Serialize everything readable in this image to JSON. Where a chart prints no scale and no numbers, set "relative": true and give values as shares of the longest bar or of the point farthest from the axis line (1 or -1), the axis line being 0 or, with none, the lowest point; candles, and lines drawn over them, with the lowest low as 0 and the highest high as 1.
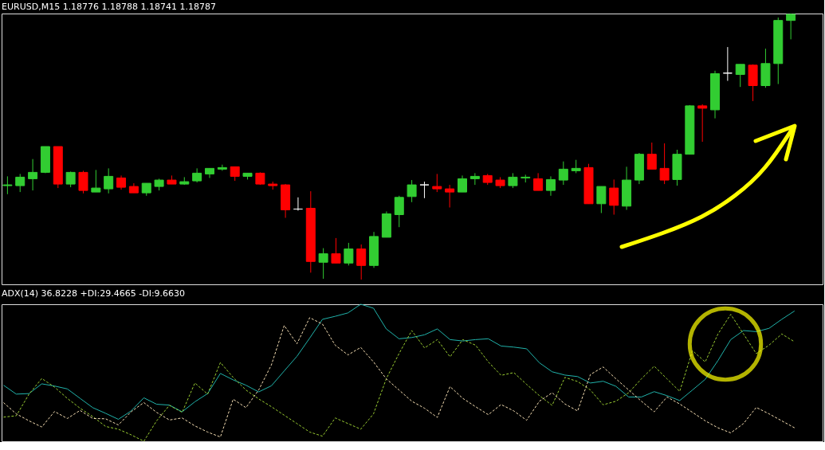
{
  "chart_data": [
    {
      "type": "candlestick",
      "title": "EURUSD,M15  1.18776 1.18788 1.18741 1.18787",
      "relative": true,
      "categories": [
        null,
        null,
        null,
        null,
        null,
        null,
        null,
        null,
        null,
        null,
        null,
        null,
        null,
        null,
        null,
        null,
        null,
        null,
        null,
        null,
        null,
        null,
        null,
        null,
        null,
        null,
        null,
        null,
        null,
        null,
        null,
        null,
        null,
        null,
        null,
        null,
        null,
        null,
        null,
        null,
        null,
        null,
        null,
        null,
        null,
        null,
        null,
        null,
        null,
        null,
        null,
        null,
        null,
        null,
        null,
        null,
        null,
        null,
        null,
        null,
        null,
        null,
        null
      ],
      "ohlc": [
        [
          0.353,
          0.388,
          0.321,
          0.356
        ],
        [
          0.353,
          0.397,
          0.329,
          0.385
        ],
        [
          0.379,
          0.453,
          0.335,
          0.403
        ],
        [
          0.403,
          0.5,
          0.4,
          0.5
        ],
        [
          0.5,
          0.5,
          0.344,
          0.359
        ],
        [
          0.359,
          0.406,
          0.347,
          0.403
        ],
        [
          0.403,
          0.409,
          0.324,
          0.335
        ],
        [
          0.329,
          0.412,
          0.329,
          0.344
        ],
        [
          0.341,
          0.418,
          0.324,
          0.388
        ],
        [
          0.382,
          0.391,
          0.338,
          0.347
        ],
        [
          0.35,
          0.362,
          0.326,
          0.326
        ],
        [
          0.326,
          0.362,
          0.315,
          0.362
        ],
        [
          0.35,
          0.379,
          0.335,
          0.374
        ],
        [
          0.374,
          0.391,
          0.359,
          0.359
        ],
        [
          0.359,
          0.385,
          0.356,
          0.368
        ],
        [
          0.371,
          0.418,
          0.365,
          0.4
        ],
        [
          0.397,
          0.418,
          0.382,
          0.418
        ],
        [
          0.415,
          0.432,
          0.409,
          0.421
        ],
        [
          0.424,
          0.424,
          0.371,
          0.388
        ],
        [
          0.388,
          0.4,
          0.376,
          0.4
        ],
        [
          0.4,
          0.403,
          0.356,
          0.359
        ],
        [
          0.359,
          0.368,
          0.338,
          0.353
        ],
        [
          0.356,
          0.359,
          0.232,
          0.262
        ],
        [
          0.265,
          0.309,
          0.259,
          0.265
        ],
        [
          0.268,
          0.332,
          0.026,
          0.068
        ],
        [
          0.065,
          0.118,
          0.003,
          0.097
        ],
        [
          0.097,
          0.156,
          0.062,
          0.062
        ],
        [
          0.062,
          0.138,
          0.053,
          0.115
        ],
        [
          0.115,
          0.132,
          0,
          0.053
        ],
        [
          0.053,
          0.179,
          0.044,
          0.162
        ],
        [
          0.159,
          0.256,
          0.159,
          0.247
        ],
        [
          0.244,
          0.315,
          0.197,
          0.309
        ],
        [
          0.312,
          0.374,
          0.291,
          0.356
        ],
        [
          0.356,
          0.368,
          0.306,
          0.356
        ],
        [
          0.35,
          0.397,
          0.329,
          0.341
        ],
        [
          0.341,
          0.356,
          0.271,
          0.329
        ],
        [
          0.329,
          0.391,
          0.329,
          0.379
        ],
        [
          0.379,
          0.4,
          0.356,
          0.388
        ],
        [
          0.391,
          0.397,
          0.356,
          0.365
        ],
        [
          0.374,
          0.385,
          0.344,
          0.353
        ],
        [
          0.353,
          0.4,
          0.344,
          0.385
        ],
        [
          0.382,
          0.394,
          0.365,
          0.385
        ],
        [
          0.379,
          0.4,
          0.335,
          0.335
        ],
        [
          0.335,
          0.388,
          0.315,
          0.376
        ],
        [
          0.374,
          0.444,
          0.356,
          0.415
        ],
        [
          0.409,
          0.45,
          0.4,
          0.418
        ],
        [
          0.421,
          0.435,
          0.285,
          0.285
        ],
        [
          0.285,
          0.35,
          0.25,
          0.35
        ],
        [
          0.344,
          0.376,
          0.244,
          0.279
        ],
        [
          0.276,
          0.424,
          0.262,
          0.374
        ],
        [
          0.374,
          0.476,
          0.359,
          0.471
        ],
        [
          0.471,
          0.515,
          0.415,
          0.415
        ],
        [
          0.418,
          0.512,
          0.359,
          0.374
        ],
        [
          0.376,
          0.488,
          0.353,
          0.471
        ],
        [
          0.471,
          0.656,
          0.471,
          0.653
        ],
        [
          0.653,
          0.659,
          0.518,
          0.644
        ],
        [
          0.638,
          0.785,
          0.606,
          0.774
        ],
        [
          0.776,
          0.874,
          0.747,
          0.776
        ],
        [
          0.771,
          0.809,
          0.724,
          0.809
        ],
        [
          0.806,
          0.809,
          0.671,
          0.729
        ],
        [
          0.729,
          0.868,
          0.721,
          0.812
        ],
        [
          0.812,
          0.985,
          0.735,
          0.974
        ],
        [
          0.974,
          1.0,
          0.903,
          0.997
        ]
      ],
      "colors": [
        "#32cd32",
        "#32cd32",
        "#32cd32",
        "#32cd32",
        "#ff0000",
        "#32cd32",
        "#ff0000",
        "#32cd32",
        "#32cd32",
        "#ff0000",
        "#ff0000",
        "#32cd32",
        "#32cd32",
        "#ff0000",
        "#32cd32",
        "#32cd32",
        "#32cd32",
        "#32cd32",
        "#ff0000",
        "#32cd32",
        "#ff0000",
        "#ff0000",
        "#ff0000",
        "#ffffff",
        "#ff0000",
        "#32cd32",
        "#ff0000",
        "#32cd32",
        "#ff0000",
        "#32cd32",
        "#32cd32",
        "#32cd32",
        "#32cd32",
        "#ffffff",
        "#ff0000",
        "#ff0000",
        "#32cd32",
        "#32cd32",
        "#ff0000",
        "#ff0000",
        "#32cd32",
        "#32cd32",
        "#ff0000",
        "#32cd32",
        "#32cd32",
        "#32cd32",
        "#ff0000",
        "#32cd32",
        "#ff0000",
        "#32cd32",
        "#32cd32",
        "#ff0000",
        "#ff0000",
        "#32cd32",
        "#32cd32",
        "#ff0000",
        "#32cd32",
        "#ffffff",
        "#32cd32",
        "#ff0000",
        "#32cd32",
        "#32cd32",
        "#32cd32"
      ]
    },
    {
      "type": "line",
      "title": "ADX(14) 36.8228 +DI:29.4665 -DI:9.6630",
      "relative": true,
      "categories": [
        null,
        null,
        null,
        null,
        null,
        null,
        null,
        null,
        null,
        null,
        null,
        null,
        null,
        null,
        null,
        null,
        null,
        null,
        null,
        null,
        null,
        null,
        null,
        null,
        null,
        null,
        null,
        null,
        null,
        null,
        null,
        null,
        null,
        null,
        null,
        null,
        null,
        null,
        null,
        null,
        null,
        null,
        null,
        null,
        null,
        null,
        null,
        null,
        null,
        null,
        null,
        null,
        null,
        null,
        null,
        null,
        null,
        null,
        null,
        null,
        null,
        null,
        null
      ],
      "series": [
        {
          "color": "#20b2aa",
          "line_style": "solid",
          "values": [
            0.409,
            0.344,
            0.348,
            0.419,
            0.403,
            0.382,
            0.313,
            0.245,
            0.204,
            0.16,
            0.221,
            0.317,
            0.27,
            0.264,
            0.215,
            0.288,
            0.348,
            0.495,
            0.448,
            0.409,
            0.36,
            0.405,
            0.513,
            0.62,
            0.753,
            0.89,
            0.912,
            0.937,
            1,
            0.971,
            0.82,
            0.748,
            0.757,
            0.777,
            0.82,
            0.742,
            0.732,
            0.742,
            0.748,
            0.695,
            0.687,
            0.675,
            0.573,
            0.507,
            0.483,
            0.472,
            0.425,
            0.438,
            0.401,
            0.323,
            0.323,
            0.362,
            0.333,
            0.297,
            0.374,
            0.452,
            0.589,
            0.742,
            0.808,
            0.8,
            0.824,
            0.89,
            0.951
          ]
        },
        {
          "color": "#9acd32",
          "line_style": "dashed",
          "values": [
            0.176,
            0.186,
            0.344,
            0.458,
            0.395,
            0.313,
            0.241,
            0.18,
            0.108,
            0.088,
            0.047,
            0,
            0.149,
            0.262,
            0.211,
            0.425,
            0.344,
            0.575,
            0.466,
            0.374,
            0.309,
            0.252,
            0.19,
            0.129,
            0.067,
            0.037,
            0.17,
            0.129,
            0.088,
            0.2,
            0.456,
            0.64,
            0.808,
            0.681,
            0.742,
            0.616,
            0.742,
            0.701,
            0.579,
            0.481,
            0.501,
            0.415,
            0.333,
            0.262,
            0.466,
            0.436,
            0.374,
            0.266,
            0.292,
            0.354,
            0.456,
            0.548,
            0.456,
            0.364,
            0.661,
            0.579,
            0.783,
            0.926,
            0.783,
            0.64,
            0.701,
            0.783,
            0.726
          ]
        },
        {
          "color": "#f5deb3",
          "line_style": "dashed",
          "values": [
            0.282,
            0.2,
            0.149,
            0.104,
            0.217,
            0.166,
            0.225,
            0.166,
            0.164,
            0.119,
            0.215,
            0.282,
            0.211,
            0.155,
            0.17,
            0.112,
            0.067,
            0.031,
            0.307,
            0.245,
            0.374,
            0.558,
            0.845,
            0.712,
            0.902,
            0.855,
            0.701,
            0.63,
            0.685,
            0.579,
            0.456,
            0.374,
            0.292,
            0.241,
            0.174,
            0.399,
            0.313,
            0.252,
            0.194,
            0.268,
            0.221,
            0.153,
            0.292,
            0.354,
            0.272,
            0.221,
            0.487,
            0.542,
            0.456,
            0.374,
            0.292,
            0.215,
            0.323,
            0.272,
            0.211,
            0.149,
            0.098,
            0.061,
            0.129,
            0.247,
            0.2,
            0.149,
            0.098
          ]
        }
      ]
    }
  ]
}
